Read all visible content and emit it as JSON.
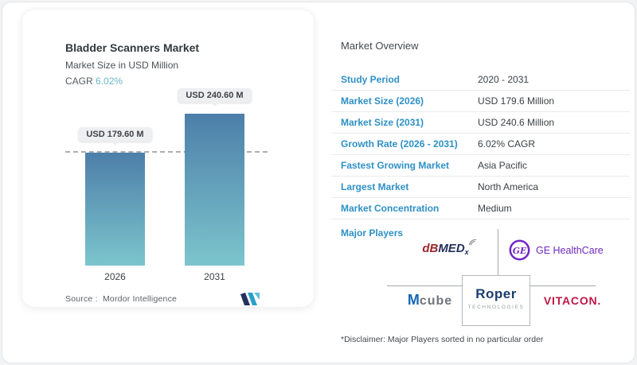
{
  "colors": {
    "label_blue": "#2E90C5",
    "cagr_teal": "#6AB6C3",
    "bar_top": "#4D7FA9",
    "bar_bottom": "#7CC5CD",
    "ge_purple": "#7227C5",
    "vitacon_red": "#BE1746",
    "roper_navy": "#1C3E70",
    "mcube_blue": "#1366B2",
    "dbmedx_red": "#99262B",
    "dbmedx_navy": "#232F5C"
  },
  "chart_card": {
    "title": "Bladder Scanners Market",
    "subtitle": "Market Size in USD Million",
    "cagr_label": "CAGR",
    "cagr_value": "6.02%",
    "source_label": "Source :",
    "source_value": "Mordor Intelligence"
  },
  "chart_data": {
    "type": "bar",
    "title": "Bladder Scanners Market",
    "subtitle": "Market Size in USD Million",
    "unit": "USD Million",
    "categories": [
      "2026",
      "2031"
    ],
    "values": [
      179.6,
      240.6
    ],
    "value_labels": [
      "USD 179.60 M",
      "USD 240.60 M"
    ],
    "cagr": "6.02%",
    "ylim": [
      0,
      290
    ],
    "reference_line": 179.6,
    "grid": false,
    "legend": false,
    "bar_gradient": [
      "#4D7FA9",
      "#7CC5CD"
    ]
  },
  "overview": {
    "heading": "Market Overview",
    "rows": [
      {
        "label": "Study Period",
        "value": "2020 - 2031"
      },
      {
        "label": "Market Size (2026)",
        "value": "USD 179.6 Million"
      },
      {
        "label": "Market Size (2031)",
        "value": "USD 240.6 Million"
      },
      {
        "label": "Growth Rate (2026 - 2031)",
        "value": "6.02% CAGR"
      },
      {
        "label": "Fastest Growing Market",
        "value": "Asia Pacific"
      },
      {
        "label": "Largest Market",
        "value": "North America"
      },
      {
        "label": "Market Concentration",
        "value": "Medium"
      }
    ],
    "major_players_label": "Major Players",
    "players": {
      "dbmedx": {
        "part1": "dB",
        "part2": "MED",
        "sub": "x"
      },
      "ge": {
        "monogram": "GE",
        "name": "GE HealthCare"
      },
      "mcube": {
        "part1": "M",
        "part2": "cube"
      },
      "roper": {
        "name": "Roper",
        "sub": "TECHNOLOGIES"
      },
      "vitacon": {
        "name": "VITACON."
      }
    },
    "disclaimer": "*Disclaimer: Major Players sorted in no particular order"
  }
}
